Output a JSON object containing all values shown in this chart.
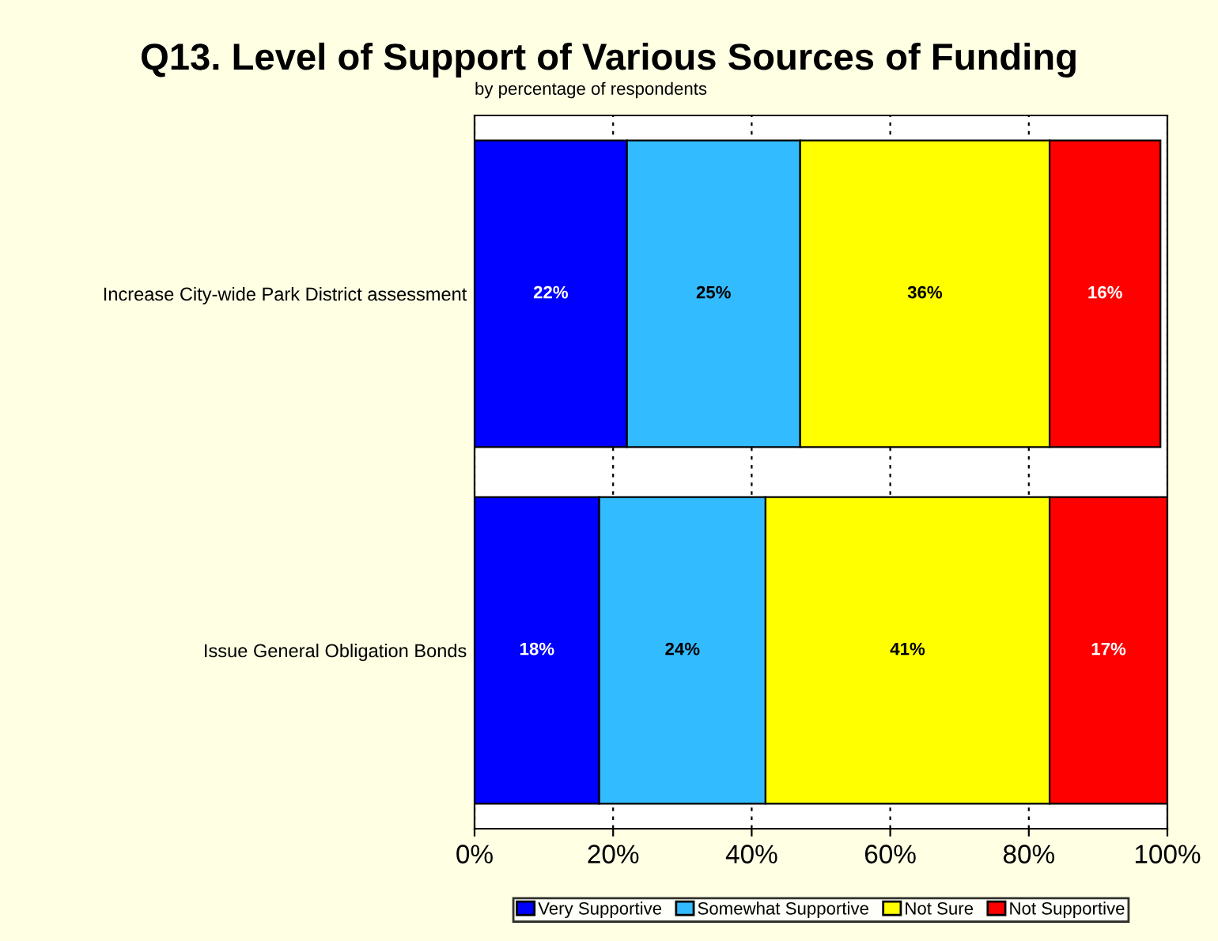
{
  "chart_data": {
    "type": "bar",
    "orientation": "horizontal",
    "stacked": true,
    "title": "Q13. Level of Support of Various Sources of Funding",
    "subtitle": "by percentage of respondents",
    "categories": [
      "Increase City-wide Park District assessment",
      "Issue General Obligation Bonds"
    ],
    "series": [
      {
        "name": "Very Supportive",
        "color": "#0000ff",
        "values": [
          22,
          18
        ],
        "value_labels": [
          "22%",
          "18%"
        ]
      },
      {
        "name": "Somewhat Supportive",
        "color": "#33bbff",
        "values": [
          25,
          24
        ],
        "value_labels": [
          "25%",
          "24%"
        ]
      },
      {
        "name": "Not Sure",
        "color": "#ffff00",
        "values": [
          36,
          41
        ],
        "value_labels": [
          "36%",
          "41%"
        ]
      },
      {
        "name": "Not Supportive",
        "color": "#ff0000",
        "values": [
          16,
          17
        ],
        "value_labels": [
          "16%",
          "17%"
        ]
      }
    ],
    "xlim": [
      0,
      100
    ],
    "xticks": [
      {
        "value": 0,
        "label": "0%"
      },
      {
        "value": 20,
        "label": "20%"
      },
      {
        "value": 40,
        "label": "40%"
      },
      {
        "value": 60,
        "label": "60%"
      },
      {
        "value": 80,
        "label": "80%"
      },
      {
        "value": 100,
        "label": "100%"
      }
    ],
    "grid": "x",
    "legend": "bottom"
  }
}
